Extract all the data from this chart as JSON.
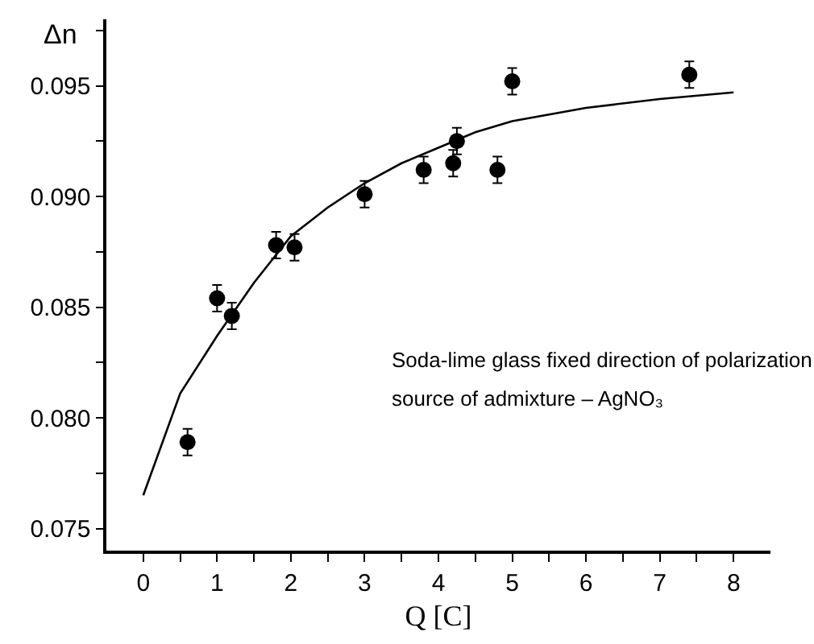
{
  "chart_data": {
    "type": "scatter",
    "xlabel": "Q [C]",
    "ylabel": "Δn",
    "annotations": [
      "Soda-lime glass fixed direction of polarization",
      "source of admixture – AgNO₃"
    ],
    "marker": "circle",
    "grid": false,
    "xlim": [
      -0.5,
      8.5
    ],
    "ylim": [
      0.074,
      0.098
    ],
    "xticks": [
      0,
      {
        "value": 0.5,
        "label": null
      },
      1,
      {
        "value": 1.5,
        "label": null
      },
      2,
      {
        "value": 2.5,
        "label": null
      },
      3,
      {
        "value": 3.5,
        "label": null
      },
      4,
      {
        "value": 4.5,
        "label": null
      },
      5,
      {
        "value": 5.5,
        "label": null
      },
      6,
      {
        "value": 6.5,
        "label": null
      },
      7,
      {
        "value": 7.5,
        "label": null
      },
      8
    ],
    "yticks": [
      {
        "value": 0.075,
        "label": "0.075"
      },
      {
        "value": 0.0775,
        "label": null
      },
      {
        "value": 0.08,
        "label": "0.080"
      },
      {
        "value": 0.0825,
        "label": null
      },
      {
        "value": 0.085,
        "label": "0.085"
      },
      {
        "value": 0.0875,
        "label": null
      },
      {
        "value": 0.09,
        "label": "0.090"
      },
      {
        "value": 0.0925,
        "label": null
      },
      {
        "value": 0.095,
        "label": "0.095"
      },
      {
        "value": 0.0975,
        "label": null
      }
    ],
    "series": [
      {
        "color": "#000000",
        "x": [
          0.6,
          1.0,
          1.2,
          1.8,
          2.05,
          3.0,
          3.8,
          4.2,
          4.25,
          4.8,
          5.0,
          7.4
        ],
        "values": [
          0.0789,
          0.0854,
          0.0846,
          0.0878,
          0.0877,
          0.0901,
          0.0912,
          0.0915,
          0.0925,
          0.0912,
          0.0952,
          0.0955
        ],
        "errors": [
          0.0006,
          0.0006,
          0.0006,
          0.0006,
          0.0006,
          0.0006,
          0.0006,
          0.0006,
          0.0006,
          0.0006,
          0.0006,
          0.0006
        ]
      },
      {
        "type": "line",
        "marker": "none",
        "color": "#000000",
        "x": [
          0,
          0.5,
          1,
          1.5,
          2,
          2.5,
          3,
          3.5,
          4,
          4.5,
          5,
          6,
          7,
          8
        ],
        "values": [
          0.0765,
          0.0811,
          0.0837,
          0.0861,
          0.0882,
          0.0895,
          0.0906,
          0.0915,
          0.0922,
          0.0929,
          0.0934,
          0.094,
          0.0944,
          0.0947
        ]
      }
    ]
  }
}
